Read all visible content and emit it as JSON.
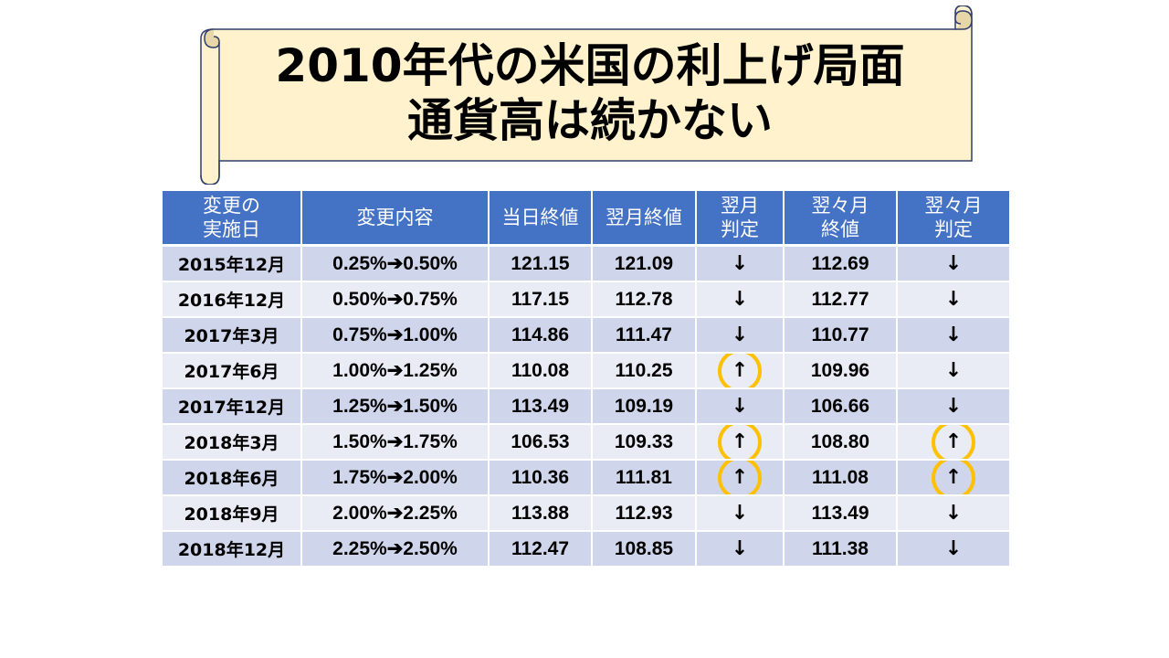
{
  "title": {
    "line1": "2010年代の米国の利上げ局面",
    "line2": "通貨高は続かない"
  },
  "colors": {
    "header_bg": "#4472c4",
    "row_dark": "#cfd5ea",
    "row_light": "#e9ebf5",
    "highlight_ring": "#ffc000",
    "scroll_fill": "#fff2cc",
    "scroll_stroke": "#2f3e6b"
  },
  "table": {
    "headers": {
      "date": [
        "変更の",
        "実施日"
      ],
      "change": "変更内容",
      "same_day_close": "当日終値",
      "next_month_close": "翌月終値",
      "next_month_judge": [
        "翌月",
        "判定"
      ],
      "two_month_close": [
        "翌々月",
        "終値"
      ],
      "two_month_judge": [
        "翌々月",
        "判定"
      ]
    },
    "rows": [
      {
        "date": "2015年12月",
        "change": "0.25%➔0.50%",
        "day_close": "121.15",
        "next_close": "121.09",
        "next_judge": "↓",
        "next_judge_highlight": false,
        "two_close": "112.69",
        "two_judge": "↓",
        "two_judge_highlight": false
      },
      {
        "date": "2016年12月",
        "change": "0.50%➔0.75%",
        "day_close": "117.15",
        "next_close": "112.78",
        "next_judge": "↓",
        "next_judge_highlight": false,
        "two_close": "112.77",
        "two_judge": "↓",
        "two_judge_highlight": false
      },
      {
        "date": "2017年3月",
        "change": "0.75%➔1.00%",
        "day_close": "114.86",
        "next_close": "111.47",
        "next_judge": "↓",
        "next_judge_highlight": false,
        "two_close": "110.77",
        "two_judge": "↓",
        "two_judge_highlight": false
      },
      {
        "date": "2017年6月",
        "change": "1.00%➔1.25%",
        "day_close": "110.08",
        "next_close": "110.25",
        "next_judge": "↑",
        "next_judge_highlight": true,
        "two_close": "109.96",
        "two_judge": "↓",
        "two_judge_highlight": false
      },
      {
        "date": "2017年12月",
        "change": "1.25%➔1.50%",
        "day_close": "113.49",
        "next_close": "109.19",
        "next_judge": "↓",
        "next_judge_highlight": false,
        "two_close": "106.66",
        "two_judge": "↓",
        "two_judge_highlight": false
      },
      {
        "date": "2018年3月",
        "change": "1.50%➔1.75%",
        "day_close": "106.53",
        "next_close": "109.33",
        "next_judge": "↑",
        "next_judge_highlight": true,
        "two_close": "108.80",
        "two_judge": "↑",
        "two_judge_highlight": true
      },
      {
        "date": "2018年6月",
        "change": "1.75%➔2.00%",
        "day_close": "110.36",
        "next_close": "111.81",
        "next_judge": "↑",
        "next_judge_highlight": true,
        "two_close": "111.08",
        "two_judge": "↑",
        "two_judge_highlight": true
      },
      {
        "date": "2018年9月",
        "change": "2.00%➔2.25%",
        "day_close": "113.88",
        "next_close": "112.93",
        "next_judge": "↓",
        "next_judge_highlight": false,
        "two_close": "113.49",
        "two_judge": "↓",
        "two_judge_highlight": false
      },
      {
        "date": "2018年12月",
        "change": "2.25%➔2.50%",
        "day_close": "112.47",
        "next_close": "108.85",
        "next_judge": "↓",
        "next_judge_highlight": false,
        "two_close": "111.38",
        "two_judge": "↓",
        "two_judge_highlight": false
      }
    ]
  }
}
